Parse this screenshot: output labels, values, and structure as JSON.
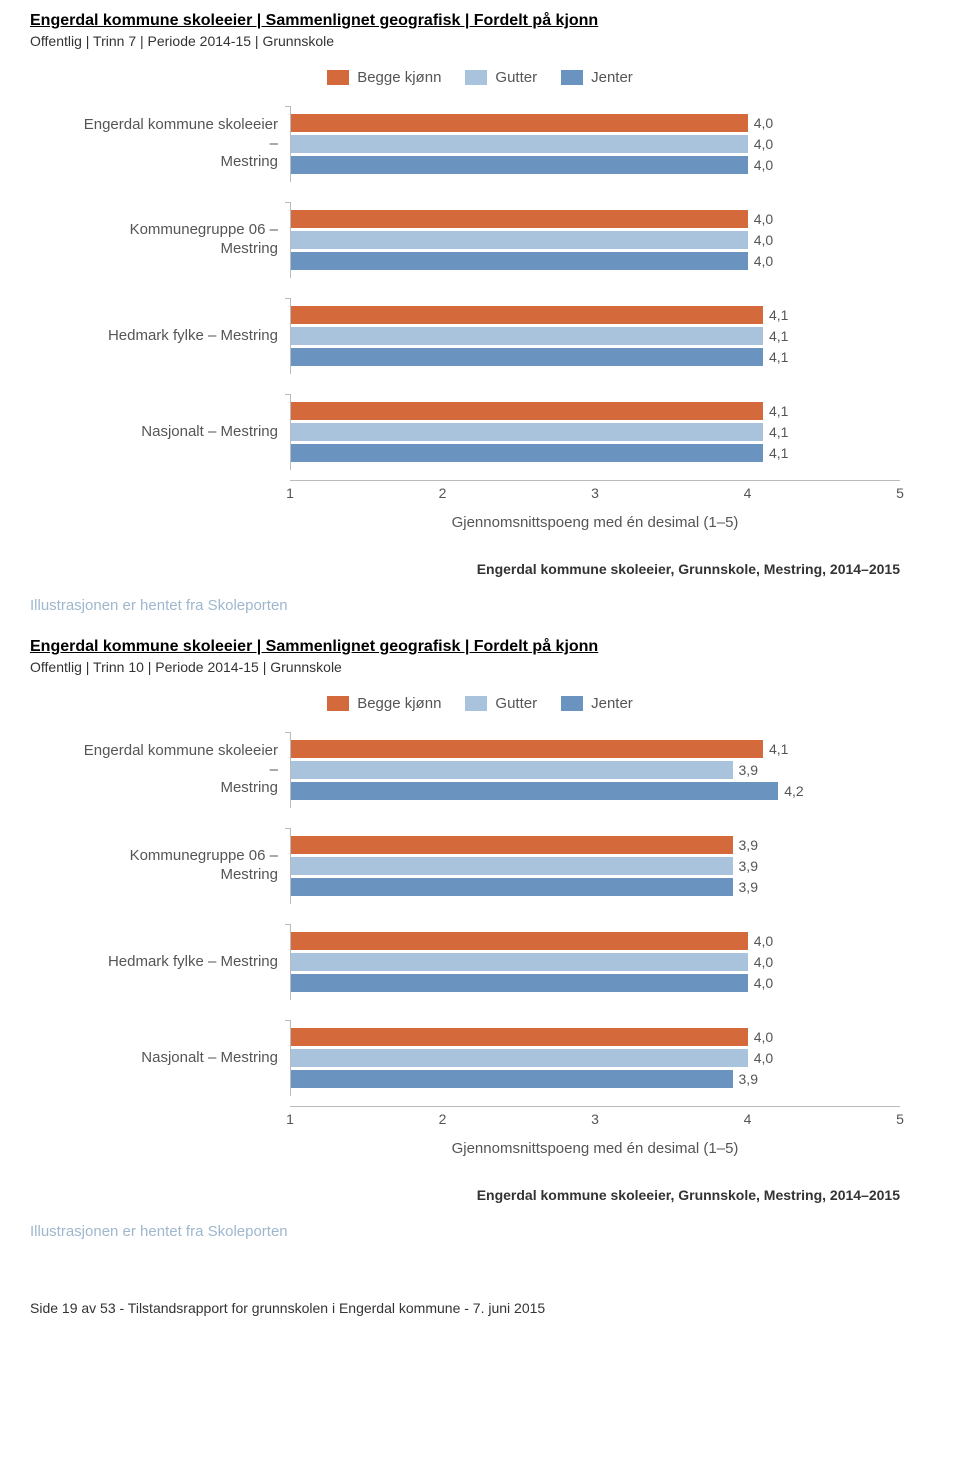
{
  "colors": {
    "begge": "#d46a3b",
    "gutter": "#a9c3dc",
    "jenter": "#6a94bf",
    "axis": "#bbbbbb",
    "text": "#555555",
    "note": "#9fb7ce"
  },
  "legend": {
    "begge": "Begge kjønn",
    "gutter": "Gutter",
    "jenter": "Jenter"
  },
  "chart1": {
    "title": "Engerdal kommune skoleeier | Sammenlignet geografisk | Fordelt på kjonn",
    "subtitle": "Offentlig | Trinn 7 | Periode 2014-15 | Grunnskole",
    "xaxis_label": "Gjennomsnittspoeng med én desimal (1–5)",
    "xmin": 1,
    "xmax": 5,
    "ticks": [
      1,
      2,
      3,
      4,
      5
    ],
    "groups": [
      {
        "label_line1": "Engerdal kommune skoleeier –",
        "label_line2": "Mestring",
        "vals": [
          4.0,
          4.0,
          4.0
        ]
      },
      {
        "label_line1": "Kommunegruppe 06 –",
        "label_line2": "Mestring",
        "vals": [
          4.0,
          4.0,
          4.0
        ]
      },
      {
        "label_line1": "Hedmark fylke – Mestring",
        "label_line2": "",
        "vals": [
          4.1,
          4.1,
          4.1
        ]
      },
      {
        "label_line1": "Nasjonalt – Mestring",
        "label_line2": "",
        "vals": [
          4.1,
          4.1,
          4.1
        ]
      }
    ],
    "source": "Engerdal kommune skoleeier, Grunnskole, Mestring, 2014–2015",
    "note": "Illustrasjonen er hentet fra Skoleporten"
  },
  "chart2": {
    "title": "Engerdal kommune skoleeier | Sammenlignet geografisk | Fordelt på kjonn",
    "subtitle": "Offentlig | Trinn 10 | Periode 2014-15 | Grunnskole",
    "xaxis_label": "Gjennomsnittspoeng med én desimal (1–5)",
    "xmin": 1,
    "xmax": 5,
    "ticks": [
      1,
      2,
      3,
      4,
      5
    ],
    "groups": [
      {
        "label_line1": "Engerdal kommune skoleeier –",
        "label_line2": "Mestring",
        "vals": [
          4.1,
          3.9,
          4.2
        ]
      },
      {
        "label_line1": "Kommunegruppe 06 –",
        "label_line2": "Mestring",
        "vals": [
          3.9,
          3.9,
          3.9
        ]
      },
      {
        "label_line1": "Hedmark fylke – Mestring",
        "label_line2": "",
        "vals": [
          4.0,
          4.0,
          4.0
        ]
      },
      {
        "label_line1": "Nasjonalt – Mestring",
        "label_line2": "",
        "vals": [
          4.0,
          4.0,
          3.9
        ]
      }
    ],
    "source": "Engerdal kommune skoleeier, Grunnskole, Mestring, 2014–2015",
    "note": "Illustrasjonen er hentet fra Skoleporten"
  },
  "footer": "Side 19 av 53 - Tilstandsrapport for grunnskolen i Engerdal kommune - 7. juni 2015"
}
